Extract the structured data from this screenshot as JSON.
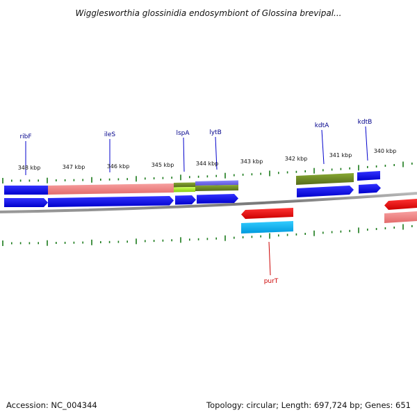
{
  "title": "Wigglesworthia glossinidia endosymbiont of Glossina brevipal...",
  "footer": {
    "accession_label": "Accession:",
    "accession": "NC_004344",
    "topology_label": "Topology:",
    "topology": "circular",
    "length_label": "Length:",
    "length": "697,724 bp",
    "genes_label": "Genes:",
    "genes": "651"
  },
  "colors": {
    "backbone": "#888888",
    "tick": "#1a7a1a",
    "blue": "#0000ee",
    "salmon": "#f08080",
    "red": "#ee0000",
    "cyan": "#00b4ee",
    "olive": "#6b8e23",
    "green_light": "#9acd32",
    "purple": "#7b68ee",
    "label_blue": "#00008b",
    "label_red": "#cc0000"
  },
  "scale": {
    "unit": "kbp",
    "ticks": [
      "348 kbp",
      "347 kbp",
      "346 kbp",
      "345 kbp",
      "344 kbp",
      "343 kbp",
      "342 kbp",
      "341 kbp",
      "340 kbp"
    ]
  },
  "genes": [
    {
      "name": "ribF",
      "strand": "+",
      "color": "label_blue"
    },
    {
      "name": "ileS",
      "strand": "+",
      "color": "label_blue"
    },
    {
      "name": "lspA",
      "strand": "+",
      "color": "label_blue"
    },
    {
      "name": "lytB",
      "strand": "+",
      "color": "label_blue"
    },
    {
      "name": "kdtA",
      "strand": "+",
      "color": "label_blue"
    },
    {
      "name": "kdtB",
      "strand": "+",
      "color": "label_blue"
    },
    {
      "name": "purT",
      "strand": "-",
      "color": "label_red"
    }
  ]
}
